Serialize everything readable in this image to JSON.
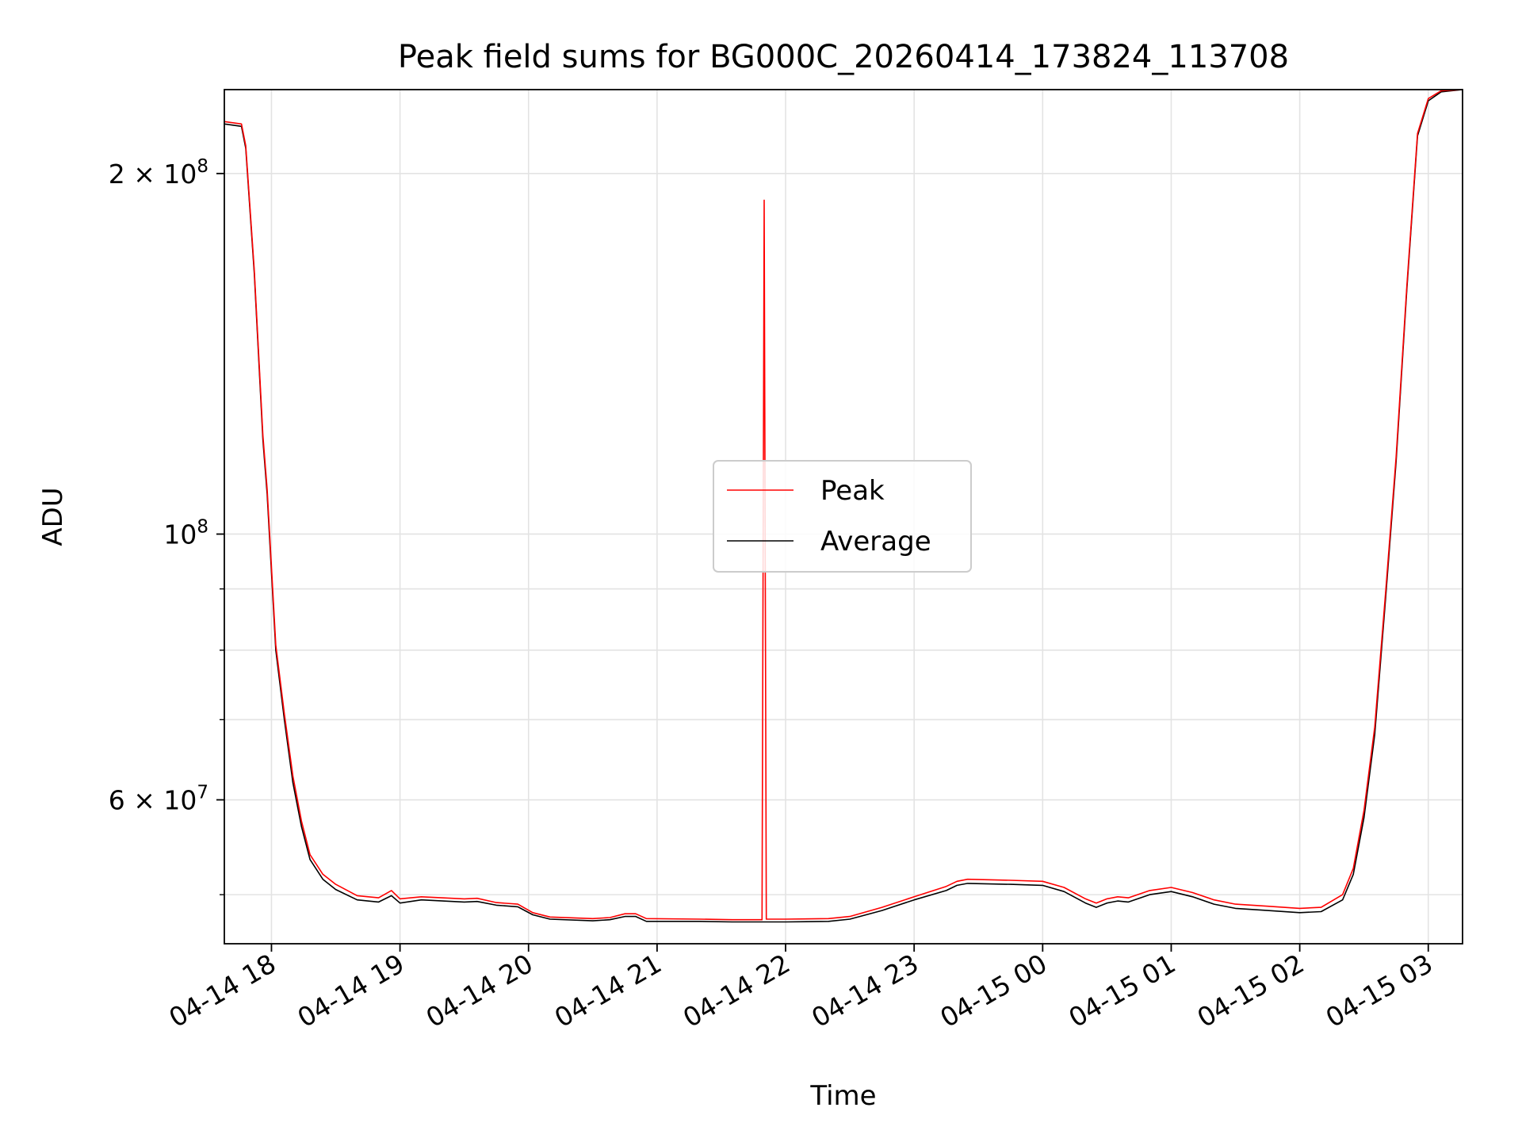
{
  "chart_data": {
    "type": "line",
    "title": "Peak field sums for BG000C_20260414_173824_113708",
    "xlabel": "Time",
    "ylabel": "ADU",
    "yscale": "log",
    "grid": true,
    "legend_position": "center",
    "xlim": [
      "2026-04-14 17:38",
      "2026-04-15 03:16"
    ],
    "ylim": [
      45500000,
      235000000
    ],
    "x_ticks": [
      {
        "t": "2026-04-14 18:00",
        "label": "04-14 18"
      },
      {
        "t": "2026-04-14 19:00",
        "label": "04-14 19"
      },
      {
        "t": "2026-04-14 20:00",
        "label": "04-14 20"
      },
      {
        "t": "2026-04-14 21:00",
        "label": "04-14 21"
      },
      {
        "t": "2026-04-14 22:00",
        "label": "04-14 22"
      },
      {
        "t": "2026-04-14 23:00",
        "label": "04-14 23"
      },
      {
        "t": "2026-04-15 00:00",
        "label": "04-15 00"
      },
      {
        "t": "2026-04-15 01:00",
        "label": "04-15 01"
      },
      {
        "t": "2026-04-15 02:00",
        "label": "04-15 02"
      },
      {
        "t": "2026-04-15 03:00",
        "label": "04-15 03"
      }
    ],
    "y_major_ticks": [
      {
        "value": 60000000,
        "mantissa": "6",
        "exp": "7"
      },
      {
        "value": 100000000,
        "mantissa": "",
        "exp": "8"
      },
      {
        "value": 200000000,
        "mantissa": "2",
        "exp": "8"
      }
    ],
    "y_minor_ticks": [
      50000000,
      70000000,
      80000000,
      90000000
    ],
    "series": [
      {
        "name": "Average",
        "color": "#000000",
        "points": [
          [
            "2026-04-14 17:38",
            220000000
          ],
          [
            "2026-04-14 17:46",
            219000000
          ],
          [
            "2026-04-14 17:48",
            210000000
          ],
          [
            "2026-04-14 17:52",
            165000000
          ],
          [
            "2026-04-14 17:56",
            120000000
          ],
          [
            "2026-04-14 17:58",
            108000000
          ],
          [
            "2026-04-14 18:02",
            80000000
          ],
          [
            "2026-04-14 18:06",
            70000000
          ],
          [
            "2026-04-14 18:10",
            62000000
          ],
          [
            "2026-04-14 18:14",
            57000000
          ],
          [
            "2026-04-14 18:18",
            53500000
          ],
          [
            "2026-04-14 18:24",
            51500000
          ],
          [
            "2026-04-14 18:30",
            50500000
          ],
          [
            "2026-04-14 18:40",
            49500000
          ],
          [
            "2026-04-14 18:50",
            49300000
          ],
          [
            "2026-04-14 18:56",
            49900000
          ],
          [
            "2026-04-14 19:00",
            49200000
          ],
          [
            "2026-04-14 19:10",
            49500000
          ],
          [
            "2026-04-14 19:30",
            49300000
          ],
          [
            "2026-04-14 19:36",
            49350000
          ],
          [
            "2026-04-14 19:45",
            49000000
          ],
          [
            "2026-04-14 19:55",
            48850000
          ],
          [
            "2026-04-14 20:02",
            48100000
          ],
          [
            "2026-04-14 20:10",
            47700000
          ],
          [
            "2026-04-14 20:30",
            47550000
          ],
          [
            "2026-04-14 20:38",
            47650000
          ],
          [
            "2026-04-14 20:45",
            47950000
          ],
          [
            "2026-04-14 20:50",
            47950000
          ],
          [
            "2026-04-14 20:55",
            47500000
          ],
          [
            "2026-04-14 21:20",
            47500000
          ],
          [
            "2026-04-14 21:35",
            47450000
          ],
          [
            "2026-04-14 21:49",
            47450000
          ],
          [
            "2026-04-14 22:00",
            47450000
          ],
          [
            "2026-04-14 22:20",
            47500000
          ],
          [
            "2026-04-14 22:30",
            47700000
          ],
          [
            "2026-04-14 22:45",
            48500000
          ],
          [
            "2026-04-14 23:00",
            49500000
          ],
          [
            "2026-04-14 23:15",
            50400000
          ],
          [
            "2026-04-14 23:20",
            50900000
          ],
          [
            "2026-04-14 23:25",
            51100000
          ],
          [
            "2026-04-14 23:45",
            51000000
          ],
          [
            "2026-04-15 00:00",
            50900000
          ],
          [
            "2026-04-15 00:10",
            50300000
          ],
          [
            "2026-04-15 00:20",
            49200000
          ],
          [
            "2026-04-15 00:25",
            48800000
          ],
          [
            "2026-04-15 00:30",
            49200000
          ],
          [
            "2026-04-15 00:35",
            49400000
          ],
          [
            "2026-04-15 00:40",
            49300000
          ],
          [
            "2026-04-15 00:50",
            50000000
          ],
          [
            "2026-04-15 01:00",
            50300000
          ],
          [
            "2026-04-15 01:10",
            49800000
          ],
          [
            "2026-04-15 01:20",
            49100000
          ],
          [
            "2026-04-15 01:30",
            48700000
          ],
          [
            "2026-04-15 01:45",
            48500000
          ],
          [
            "2026-04-15 02:00",
            48300000
          ],
          [
            "2026-04-15 02:10",
            48400000
          ],
          [
            "2026-04-15 02:20",
            49500000
          ],
          [
            "2026-04-15 02:25",
            52000000
          ],
          [
            "2026-04-15 02:30",
            58000000
          ],
          [
            "2026-04-15 02:35",
            68000000
          ],
          [
            "2026-04-15 02:40",
            88000000
          ],
          [
            "2026-04-15 02:45",
            115000000
          ],
          [
            "2026-04-15 02:50",
            160000000
          ],
          [
            "2026-04-15 02:55",
            215000000
          ],
          [
            "2026-04-15 03:00",
            230000000
          ],
          [
            "2026-04-15 03:06",
            234000000
          ],
          [
            "2026-04-15 03:16",
            235000000
          ]
        ]
      },
      {
        "name": "Peak",
        "color": "#ff0000",
        "points": [
          [
            "2026-04-14 17:38",
            221000000
          ],
          [
            "2026-04-14 17:46",
            220000000
          ],
          [
            "2026-04-14 17:48",
            211000000
          ],
          [
            "2026-04-14 17:52",
            166000000
          ],
          [
            "2026-04-14 17:56",
            121000000
          ],
          [
            "2026-04-14 17:58",
            109000000
          ],
          [
            "2026-04-14 18:02",
            80800000
          ],
          [
            "2026-04-14 18:06",
            70800000
          ],
          [
            "2026-04-14 18:10",
            62800000
          ],
          [
            "2026-04-14 18:14",
            57600000
          ],
          [
            "2026-04-14 18:18",
            54000000
          ],
          [
            "2026-04-14 18:24",
            52000000
          ],
          [
            "2026-04-14 18:30",
            51000000
          ],
          [
            "2026-04-14 18:40",
            49900000
          ],
          [
            "2026-04-14 18:50",
            49700000
          ],
          [
            "2026-04-14 18:56",
            50400000
          ],
          [
            "2026-04-14 19:00",
            49600000
          ],
          [
            "2026-04-14 19:10",
            49800000
          ],
          [
            "2026-04-14 19:30",
            49600000
          ],
          [
            "2026-04-14 19:36",
            49650000
          ],
          [
            "2026-04-14 19:45",
            49250000
          ],
          [
            "2026-04-14 19:55",
            49100000
          ],
          [
            "2026-04-14 20:02",
            48300000
          ],
          [
            "2026-04-14 20:10",
            47900000
          ],
          [
            "2026-04-14 20:30",
            47750000
          ],
          [
            "2026-04-14 20:38",
            47850000
          ],
          [
            "2026-04-14 20:45",
            48200000
          ],
          [
            "2026-04-14 20:50",
            48200000
          ],
          [
            "2026-04-14 20:55",
            47750000
          ],
          [
            "2026-04-14 21:20",
            47700000
          ],
          [
            "2026-04-14 21:35",
            47650000
          ],
          [
            "2026-04-14 21:49",
            47650000
          ],
          [
            "2026-04-14 21:50",
            190000000
          ],
          [
            "2026-04-14 21:51",
            47700000
          ],
          [
            "2026-04-14 22:00",
            47700000
          ],
          [
            "2026-04-14 22:20",
            47750000
          ],
          [
            "2026-04-14 22:30",
            47950000
          ],
          [
            "2026-04-14 22:45",
            48800000
          ],
          [
            "2026-04-14 23:00",
            49800000
          ],
          [
            "2026-04-14 23:15",
            50800000
          ],
          [
            "2026-04-14 23:20",
            51300000
          ],
          [
            "2026-04-14 23:25",
            51500000
          ],
          [
            "2026-04-14 23:45",
            51400000
          ],
          [
            "2026-04-15 00:00",
            51300000
          ],
          [
            "2026-04-15 00:10",
            50700000
          ],
          [
            "2026-04-15 00:20",
            49600000
          ],
          [
            "2026-04-15 00:25",
            49200000
          ],
          [
            "2026-04-15 00:30",
            49600000
          ],
          [
            "2026-04-15 00:35",
            49800000
          ],
          [
            "2026-04-15 00:40",
            49700000
          ],
          [
            "2026-04-15 00:50",
            50400000
          ],
          [
            "2026-04-15 01:00",
            50700000
          ],
          [
            "2026-04-15 01:10",
            50200000
          ],
          [
            "2026-04-15 01:20",
            49500000
          ],
          [
            "2026-04-15 01:30",
            49100000
          ],
          [
            "2026-04-15 01:45",
            48900000
          ],
          [
            "2026-04-15 02:00",
            48700000
          ],
          [
            "2026-04-15 02:10",
            48800000
          ],
          [
            "2026-04-15 02:20",
            50000000
          ],
          [
            "2026-04-15 02:25",
            52600000
          ],
          [
            "2026-04-15 02:30",
            58800000
          ],
          [
            "2026-04-15 02:35",
            69000000
          ],
          [
            "2026-04-15 02:40",
            89000000
          ],
          [
            "2026-04-15 02:45",
            116000000
          ],
          [
            "2026-04-15 02:50",
            161000000
          ],
          [
            "2026-04-15 02:55",
            216000000
          ],
          [
            "2026-04-15 03:00",
            231000000
          ],
          [
            "2026-04-15 03:06",
            234500000
          ],
          [
            "2026-04-15 03:16",
            235000000
          ]
        ]
      }
    ],
    "legend": [
      {
        "name": "Peak",
        "color": "#ff0000"
      },
      {
        "name": "Average",
        "color": "#000000"
      }
    ]
  }
}
